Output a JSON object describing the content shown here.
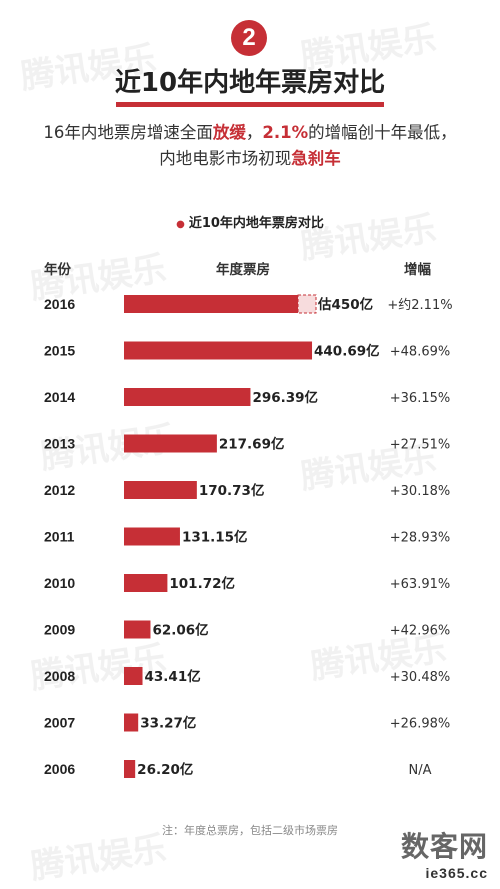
{
  "badge": "2",
  "title": "近10年内地年票房对比",
  "subtitle": {
    "line1_a": "16年内地票房增速全面",
    "line1_hl1": "放缓",
    "line1_b": "，",
    "line1_hl2": "2.1%",
    "line1_c": "的增幅创十年最低，",
    "line2_a": "内地电影市场初现",
    "line2_hl": "急刹车"
  },
  "watermark": "腾讯娱乐",
  "columns": {
    "year": "年份",
    "box": "年度票房",
    "growth": "增幅"
  },
  "chart_data": {
    "type": "bar",
    "orientation": "horizontal",
    "title": "近10年内地年票房对比",
    "unit": "亿",
    "categories": [
      "2016",
      "2015",
      "2014",
      "2013",
      "2012",
      "2011",
      "2010",
      "2009",
      "2008",
      "2007",
      "2006"
    ],
    "values": [
      450,
      440.69,
      296.39,
      217.69,
      170.73,
      131.15,
      101.72,
      62.06,
      43.41,
      33.27,
      26.2
    ],
    "value_labels": [
      "估450亿",
      "440.69亿",
      "296.39亿",
      "217.69亿",
      "170.73亿",
      "131.15亿",
      "101.72亿",
      "62.06亿",
      "43.41亿",
      "33.27亿",
      "26.20亿"
    ],
    "growth": [
      "+约2.11%",
      "+48.69%",
      "+36.15%",
      "+27.51%",
      "+30.18%",
      "+28.93%",
      "+63.91%",
      "+42.96%",
      "+30.48%",
      "+26.98%",
      "N/A"
    ],
    "estimated": [
      true,
      false,
      false,
      false,
      false,
      false,
      false,
      false,
      false,
      false,
      false
    ],
    "bar_color": "#c62f36",
    "grid": false
  },
  "note": "注：年度总票房，包括二级市场票房",
  "logo": {
    "big": "数客网",
    "small": "ie365.cc"
  }
}
